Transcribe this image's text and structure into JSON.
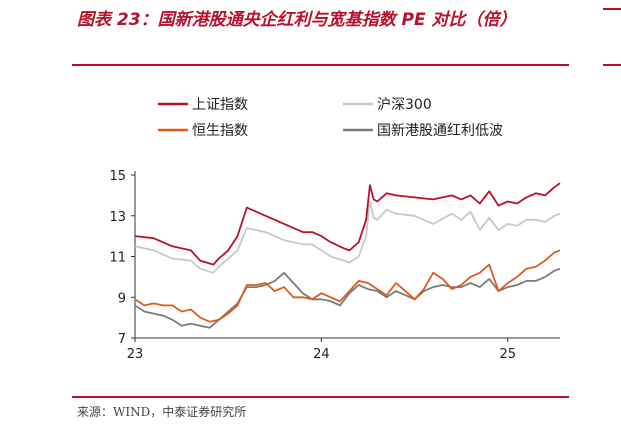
{
  "title": "图表 23：国新港股通央企红利与宽基指数 PE 对比（倍）",
  "source": "来源：WIND，中泰证券研究所",
  "chart_data": {
    "type": "line",
    "x_ticks": [
      "23",
      "24",
      "25"
    ],
    "x_tick_values": [
      2023.0,
      2024.0,
      2025.0
    ],
    "x_range": [
      2023.0,
      2025.28
    ],
    "ylim": [
      7,
      15
    ],
    "y_ticks": [
      7,
      9,
      11,
      13,
      15
    ],
    "legend_position": "top",
    "grid": false,
    "series": [
      {
        "name": "上证指数",
        "color": "#b8112b",
        "x": [
          2023.0,
          2023.1,
          2023.2,
          2023.3,
          2023.35,
          2023.42,
          2023.45,
          2023.5,
          2023.55,
          2023.6,
          2023.7,
          2023.75,
          2023.8,
          2023.9,
          2023.95,
          2024.0,
          2024.05,
          2024.12,
          2024.15,
          2024.2,
          2024.24,
          2024.26,
          2024.28,
          2024.3,
          2024.35,
          2024.4,
          2024.5,
          2024.6,
          2024.7,
          2024.75,
          2024.8,
          2024.85,
          2024.9,
          2024.95,
          2025.0,
          2025.05,
          2025.1,
          2025.15,
          2025.2,
          2025.25,
          2025.28
        ],
        "values": [
          12.0,
          11.9,
          11.5,
          11.3,
          10.8,
          10.6,
          10.9,
          11.3,
          12.0,
          13.4,
          13.0,
          12.8,
          12.6,
          12.2,
          12.2,
          12.0,
          11.7,
          11.4,
          11.3,
          11.7,
          12.8,
          14.5,
          13.8,
          13.7,
          14.1,
          14.0,
          13.9,
          13.8,
          14.0,
          13.8,
          14.0,
          13.6,
          14.2,
          13.5,
          13.7,
          13.6,
          13.9,
          14.1,
          14.0,
          14.4,
          14.6
        ]
      },
      {
        "name": "沪深300",
        "color": "#c8c8c8",
        "x": [
          2023.0,
          2023.1,
          2023.2,
          2023.3,
          2023.35,
          2023.42,
          2023.45,
          2023.5,
          2023.55,
          2023.6,
          2023.7,
          2023.75,
          2023.8,
          2023.9,
          2023.95,
          2024.0,
          2024.05,
          2024.12,
          2024.15,
          2024.2,
          2024.24,
          2024.26,
          2024.28,
          2024.3,
          2024.35,
          2024.4,
          2024.5,
          2024.6,
          2024.7,
          2024.75,
          2024.8,
          2024.85,
          2024.9,
          2024.95,
          2025.0,
          2025.05,
          2025.1,
          2025.15,
          2025.2,
          2025.25,
          2025.28
        ],
        "values": [
          11.5,
          11.3,
          10.9,
          10.8,
          10.4,
          10.2,
          10.5,
          10.9,
          11.3,
          12.4,
          12.2,
          12.0,
          11.8,
          11.6,
          11.6,
          11.3,
          11.0,
          10.8,
          10.7,
          11.0,
          12.0,
          13.7,
          12.9,
          12.8,
          13.3,
          13.1,
          13.0,
          12.6,
          13.1,
          12.8,
          13.2,
          12.3,
          12.9,
          12.3,
          12.6,
          12.5,
          12.8,
          12.8,
          12.7,
          13.0,
          13.1
        ]
      },
      {
        "name": "恒生指数",
        "color": "#e05a1a",
        "x": [
          2023.0,
          2023.05,
          2023.1,
          2023.15,
          2023.2,
          2023.25,
          2023.3,
          2023.35,
          2023.4,
          2023.45,
          2023.5,
          2023.55,
          2023.6,
          2023.65,
          2023.7,
          2023.75,
          2023.8,
          2023.85,
          2023.9,
          2023.95,
          2024.0,
          2024.05,
          2024.1,
          2024.15,
          2024.2,
          2024.25,
          2024.3,
          2024.35,
          2024.4,
          2024.45,
          2024.5,
          2024.55,
          2024.6,
          2024.65,
          2024.7,
          2024.75,
          2024.8,
          2024.85,
          2024.9,
          2024.95,
          2025.0,
          2025.05,
          2025.1,
          2025.15,
          2025.2,
          2025.25,
          2025.28
        ],
        "values": [
          8.9,
          8.6,
          8.7,
          8.6,
          8.6,
          8.3,
          8.4,
          8.0,
          7.8,
          7.9,
          8.2,
          8.6,
          9.6,
          9.6,
          9.7,
          9.3,
          9.5,
          9.0,
          9.0,
          8.9,
          9.2,
          9.0,
          8.8,
          9.3,
          9.8,
          9.7,
          9.4,
          9.1,
          9.7,
          9.3,
          8.9,
          9.4,
          10.2,
          9.9,
          9.4,
          9.6,
          10.0,
          10.2,
          10.6,
          9.3,
          9.7,
          10.0,
          10.4,
          10.5,
          10.8,
          11.2,
          11.3
        ]
      },
      {
        "name": "国新港股通红利低波",
        "color": "#7b7b7b",
        "x": [
          2023.0,
          2023.05,
          2023.1,
          2023.15,
          2023.2,
          2023.25,
          2023.3,
          2023.35,
          2023.4,
          2023.45,
          2023.5,
          2023.55,
          2023.6,
          2023.65,
          2023.7,
          2023.75,
          2023.8,
          2023.85,
          2023.9,
          2023.95,
          2024.0,
          2024.05,
          2024.1,
          2024.15,
          2024.2,
          2024.25,
          2024.3,
          2024.35,
          2024.4,
          2024.45,
          2024.5,
          2024.55,
          2024.6,
          2024.65,
          2024.7,
          2024.75,
          2024.8,
          2024.85,
          2024.9,
          2024.95,
          2025.0,
          2025.05,
          2025.1,
          2025.15,
          2025.2,
          2025.25,
          2025.28
        ],
        "values": [
          8.6,
          8.3,
          8.2,
          8.1,
          7.9,
          7.6,
          7.7,
          7.6,
          7.5,
          7.9,
          8.3,
          8.7,
          9.5,
          9.5,
          9.6,
          9.8,
          10.2,
          9.7,
          9.2,
          8.9,
          8.9,
          8.8,
          8.6,
          9.2,
          9.6,
          9.4,
          9.3,
          9.0,
          9.3,
          9.1,
          8.9,
          9.3,
          9.5,
          9.6,
          9.5,
          9.5,
          9.7,
          9.5,
          9.9,
          9.3,
          9.5,
          9.6,
          9.8,
          9.8,
          10.0,
          10.3,
          10.4
        ]
      }
    ]
  }
}
